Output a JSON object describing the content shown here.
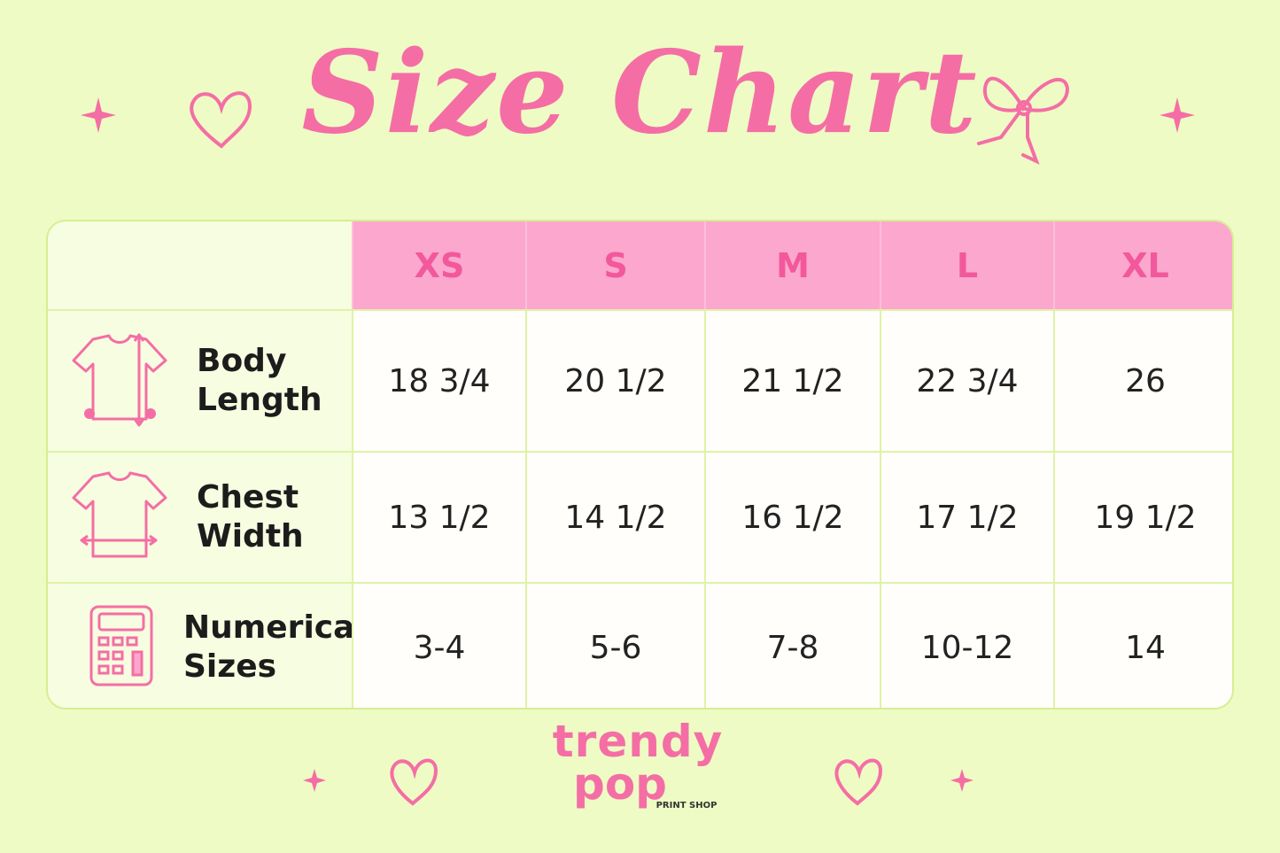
{
  "title": "Size Chart",
  "table": {
    "header": [
      "XS",
      "S",
      "M",
      "L",
      "XL"
    ],
    "rows": [
      {
        "label": "Body Length",
        "values": [
          "18 3/4",
          "20 1/2",
          "21 1/2",
          "22 3/4",
          "26"
        ]
      },
      {
        "label": "Chest Width",
        "values": [
          "13 1/2",
          "14 1/2",
          "16 1/2",
          "17 1/2",
          "19 1/2"
        ]
      },
      {
        "label": "Numerical Sizes",
        "values": [
          "3-4",
          "5-6",
          "7-8",
          "10-12",
          "14"
        ]
      }
    ]
  },
  "brand": {
    "line1": "trendy",
    "line2": "pop",
    "tagline": "PRINT SHOP"
  }
}
